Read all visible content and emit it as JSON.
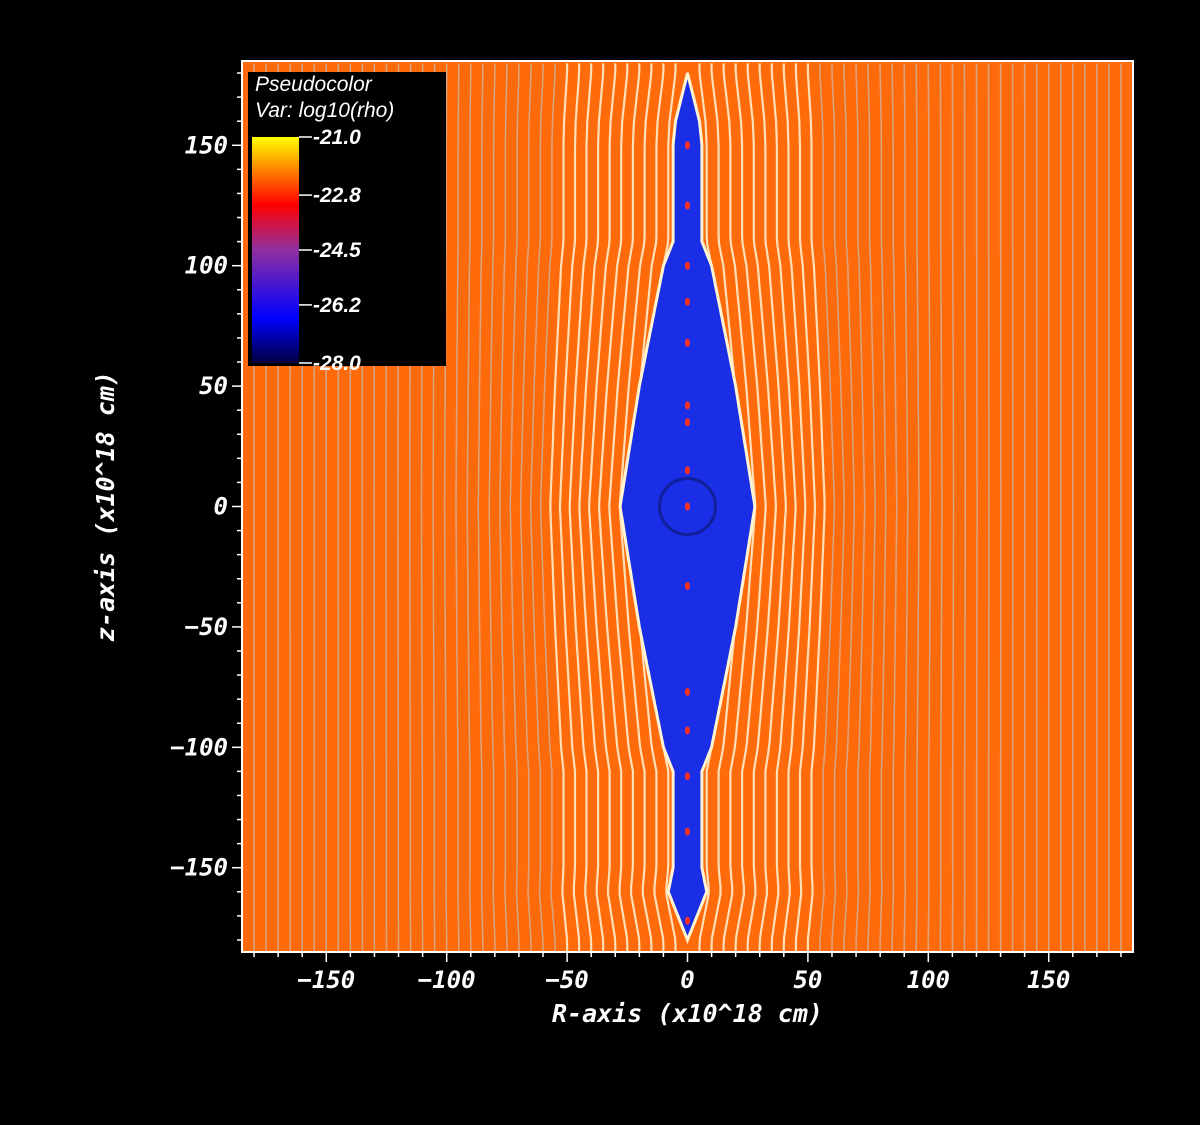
{
  "chart_data": {
    "type": "heatmap",
    "legend": {
      "title": "Pseudocolor",
      "variable": "Var: log10(rho)",
      "ticks": [
        "-21.0",
        "-22.8",
        "-24.5",
        "-26.2",
        "-28.0"
      ],
      "range": [
        -28.0,
        -21.0
      ],
      "placement": "top-left",
      "colormap": [
        "#000040",
        "#0000ff",
        "#9030a0",
        "#ff0000",
        "#ff8000",
        "#ffff00"
      ]
    },
    "xlabel": "R-axis (x10^18 cm)",
    "ylabel": "z-axis (x10^18 cm)",
    "xlim": [
      -185,
      185
    ],
    "ylim": [
      -185,
      185
    ],
    "xticks": [
      -150,
      -100,
      -50,
      0,
      50,
      100,
      150
    ],
    "yticks": [
      -150,
      -100,
      -50,
      0,
      50,
      100,
      150
    ],
    "xtick_labels": [
      "−150",
      "−100",
      "−50",
      "0",
      "50",
      "100",
      "150"
    ],
    "ytick_labels": [
      "−150",
      "−100",
      "−50",
      "0",
      "50",
      "100",
      "150"
    ],
    "background_value": -22.3,
    "cavity_value": -26.4,
    "cavity_outline": {
      "z": [
        -180,
        -160,
        -150,
        -110,
        -100,
        -50,
        0,
        50,
        100,
        110,
        150,
        160,
        180
      ],
      "R": [
        0,
        8,
        6,
        6,
        10,
        20,
        28,
        20,
        10,
        6,
        6,
        5,
        0
      ]
    },
    "field_line_spacing": 5,
    "grid": false,
    "colors": {
      "background": "#ff6a0a",
      "cavity": "#1a2ee6",
      "field_line": "#ffe6c0",
      "frame": "#ffffff",
      "page": "#000000"
    }
  }
}
